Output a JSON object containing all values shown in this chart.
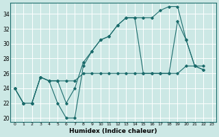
{
  "xlabel": "Humidex (Indice chaleur)",
  "bg_color": "#cce8e5",
  "line_color": "#1a6b6b",
  "grid_color": "#ffffff",
  "xlim": [
    -0.5,
    23.5
  ],
  "ylim": [
    19.5,
    35.5
  ],
  "xticks": [
    0,
    1,
    2,
    3,
    4,
    5,
    6,
    7,
    8,
    9,
    10,
    11,
    12,
    13,
    14,
    15,
    16,
    17,
    18,
    19,
    20,
    21,
    22,
    23
  ],
  "yticks": [
    20,
    22,
    24,
    26,
    28,
    30,
    32,
    34
  ],
  "series": [
    [
      24,
      22,
      22,
      25.5,
      25,
      25,
      25,
      25,
      26,
      26,
      26,
      26,
      26,
      26,
      26,
      26,
      26,
      26,
      26,
      26,
      27,
      27,
      27
    ],
    [
      24,
      22,
      22,
      25.5,
      25,
      22,
      20,
      20,
      27,
      29,
      30.5,
      31,
      32.5,
      33.5,
      33.5,
      33.5,
      33.5,
      34.5,
      35,
      35,
      30.5,
      27,
      26.5
    ],
    [
      24,
      22,
      22,
      25.5,
      25,
      25,
      22,
      24,
      27.5,
      29,
      30.5,
      31,
      32.5,
      33.5,
      33.5,
      26,
      26,
      26,
      26,
      33,
      30.5,
      27,
      26.5
    ]
  ]
}
